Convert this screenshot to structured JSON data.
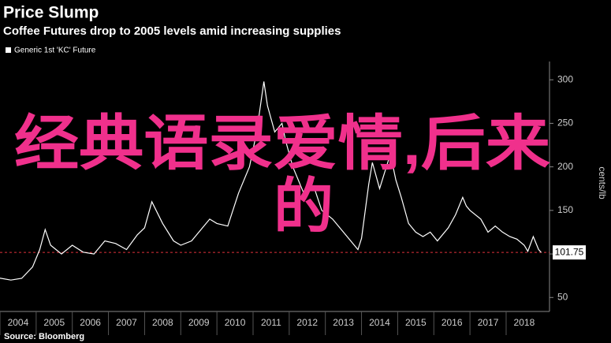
{
  "chart_data": {
    "type": "line",
    "title": "Price Slump",
    "subtitle": "Coffee Futures drop to 2005 levels amid increasing supplies",
    "y_label": "cents/lb",
    "source": "Source: Bloomberg",
    "overlay_text": [
      "经典语录爱情,后来",
      "的"
    ],
    "x": [
      2003.9,
      2004.3,
      2004.6,
      2004.9,
      2005.1,
      2005.25,
      2005.4,
      2005.7,
      2006.0,
      2006.3,
      2006.6,
      2006.9,
      2007.2,
      2007.5,
      2007.8,
      2008.0,
      2008.2,
      2008.5,
      2008.8,
      2009.0,
      2009.3,
      2009.6,
      2009.8,
      2010.0,
      2010.3,
      2010.6,
      2010.9,
      2011.1,
      2011.3,
      2011.4,
      2011.6,
      2011.8,
      2011.9,
      2012.1,
      2012.4,
      2012.7,
      2012.9,
      2013.2,
      2013.5,
      2013.8,
      2013.9,
      2014.0,
      2014.2,
      2014.3,
      2014.5,
      2014.8,
      2014.95,
      2015.1,
      2015.3,
      2015.5,
      2015.7,
      2015.9,
      2016.1,
      2016.4,
      2016.6,
      2016.8,
      2016.9,
      2017.0,
      2017.3,
      2017.5,
      2017.7,
      2017.9,
      2018.1,
      2018.3,
      2018.5,
      2018.6,
      2018.75,
      2018.9,
      2018.97
    ],
    "series": [
      {
        "name": "Generic 1st 'KC' Future",
        "color": "#ffffff",
        "values": [
          73,
          70,
          72,
          85,
          105,
          128,
          110,
          100,
          110,
          102,
          100,
          115,
          112,
          105,
          122,
          130,
          160,
          135,
          115,
          110,
          115,
          130,
          140,
          135,
          132,
          170,
          200,
          240,
          298,
          270,
          240,
          250,
          230,
          200,
          170,
          175,
          150,
          140,
          125,
          110,
          105,
          118,
          180,
          205,
          175,
          215,
          185,
          165,
          135,
          125,
          120,
          125,
          115,
          130,
          145,
          165,
          155,
          150,
          140,
          125,
          132,
          125,
          120,
          117,
          110,
          103,
          120,
          105,
          101.75
        ]
      }
    ],
    "last_value": 101.75,
    "reference_color": "#e0303a",
    "xlim": [
      2004,
      2019.2
    ],
    "xticks": [
      2004,
      2005,
      2006,
      2007,
      2008,
      2009,
      2010,
      2011,
      2012,
      2013,
      2014,
      2015,
      2016,
      2017,
      2018
    ],
    "ylim": [
      43,
      321
    ],
    "yticks": [
      50,
      100,
      150,
      200,
      250,
      300
    ],
    "grid": false
  }
}
